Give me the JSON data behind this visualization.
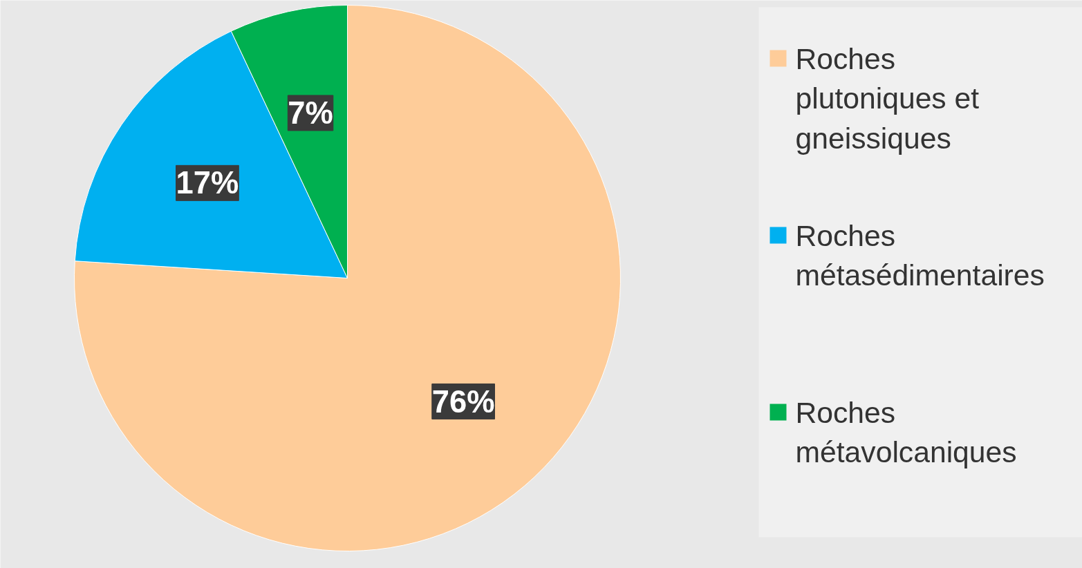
{
  "chart_data": {
    "type": "pie",
    "categories": [
      "Roches plutoniques et gneissiques",
      "Roches métasédimentaires",
      "Roches métavolcaniques"
    ],
    "values": [
      76,
      17,
      7
    ],
    "colors": [
      "#fecc99",
      "#00b0f0",
      "#00b050"
    ],
    "value_labels": [
      "76%",
      "17%",
      "7%"
    ],
    "legend": "right"
  }
}
